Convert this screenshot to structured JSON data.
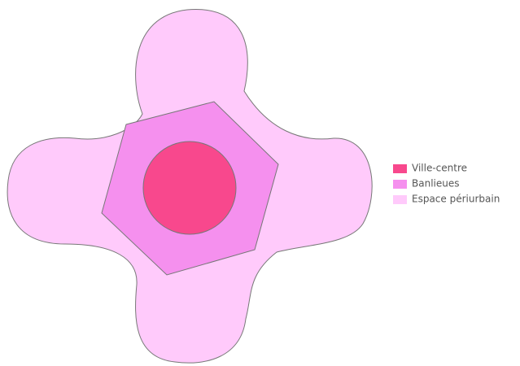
{
  "legend": [
    {
      "label": "Ville-centre",
      "color": "#f8488d"
    },
    {
      "label": "Banlieues",
      "color": "#f590ee"
    },
    {
      "label": "Espace périurbain",
      "color": "#ffcafb"
    }
  ]
}
